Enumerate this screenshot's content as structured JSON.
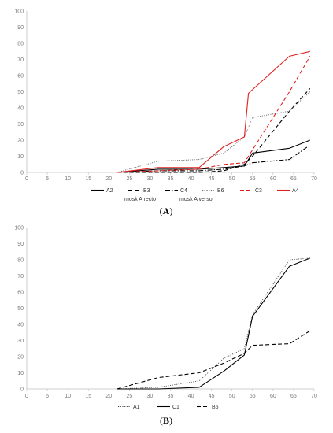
{
  "chart_data": [
    {
      "type": "line",
      "panel_label": "A",
      "xlim": [
        0,
        70
      ],
      "ylim": [
        0,
        100
      ],
      "x_ticks": [
        0,
        5,
        10,
        15,
        20,
        25,
        30,
        35,
        40,
        45,
        50,
        55,
        60,
        65,
        70
      ],
      "y_ticks": [
        0,
        10,
        20,
        30,
        40,
        50,
        60,
        70,
        80,
        90,
        100
      ],
      "grid": false,
      "legend": "bottom",
      "annotations": [
        "mosk A recto",
        "mosk A verso"
      ],
      "series": [
        {
          "name": "A2",
          "color": "#000000",
          "dash": "solid",
          "points": [
            [
              22,
              0
            ],
            [
              32,
              2
            ],
            [
              42,
              2
            ],
            [
              48,
              3
            ],
            [
              53,
              4
            ],
            [
              55,
              12
            ],
            [
              64,
              15
            ],
            [
              69,
              20
            ]
          ]
        },
        {
          "name": "B3",
          "color": "#000000",
          "dash": "dashed",
          "points": [
            [
              22,
              0
            ],
            [
              32,
              0
            ],
            [
              42,
              0
            ],
            [
              48,
              1
            ],
            [
              53,
              5
            ],
            [
              55,
              10
            ],
            [
              64,
              38
            ],
            [
              69,
              52
            ]
          ]
        },
        {
          "name": "C4",
          "color": "#000000",
          "dash": "dashdot",
          "points": [
            [
              22,
              0
            ],
            [
              32,
              1
            ],
            [
              42,
              1
            ],
            [
              48,
              2
            ],
            [
              53,
              4
            ],
            [
              55,
              6
            ],
            [
              64,
              8
            ],
            [
              69,
              17
            ]
          ]
        },
        {
          "name": "B6",
          "color": "#666666",
          "dash": "dotted",
          "points": [
            [
              22,
              0
            ],
            [
              32,
              7
            ],
            [
              42,
              8
            ],
            [
              48,
              12
            ],
            [
              53,
              22
            ],
            [
              55,
              34
            ],
            [
              64,
              38
            ],
            [
              69,
              50
            ]
          ]
        },
        {
          "name": "C3",
          "color": "#e02020",
          "dash": "dashed",
          "points": [
            [
              22,
              0
            ],
            [
              32,
              1
            ],
            [
              42,
              2
            ],
            [
              48,
              5
            ],
            [
              53,
              6
            ],
            [
              55,
              14
            ],
            [
              64,
              50
            ],
            [
              69,
              72
            ]
          ]
        },
        {
          "name": "A4",
          "color": "#e02020",
          "dash": "solid",
          "points": [
            [
              22,
              0
            ],
            [
              32,
              3
            ],
            [
              42,
              3
            ],
            [
              48,
              16
            ],
            [
              53,
              22
            ],
            [
              54,
              49
            ],
            [
              64,
              72
            ],
            [
              69,
              75
            ]
          ]
        }
      ]
    },
    {
      "type": "line",
      "panel_label": "B",
      "xlim": [
        0,
        70
      ],
      "ylim": [
        0,
        100
      ],
      "x_ticks": [
        0,
        5,
        10,
        15,
        20,
        25,
        30,
        35,
        40,
        45,
        50,
        55,
        60,
        65,
        70
      ],
      "y_ticks": [
        0,
        10,
        20,
        30,
        40,
        50,
        60,
        70,
        80,
        90,
        100
      ],
      "grid": false,
      "legend": "bottom",
      "series": [
        {
          "name": "A1",
          "color": "#555555",
          "dash": "dotted",
          "points": [
            [
              22,
              0
            ],
            [
              32,
              1
            ],
            [
              42,
              5
            ],
            [
              48,
              19
            ],
            [
              53,
              25
            ],
            [
              55,
              46
            ],
            [
              64,
              80
            ],
            [
              69,
              81
            ]
          ]
        },
        {
          "name": "C1",
          "color": "#000000",
          "dash": "solid",
          "points": [
            [
              22,
              0
            ],
            [
              32,
              0
            ],
            [
              42,
              1
            ],
            [
              48,
              11
            ],
            [
              53,
              21
            ],
            [
              55,
              45
            ],
            [
              64,
              76
            ],
            [
              69,
              81
            ]
          ]
        },
        {
          "name": "B5",
          "color": "#000000",
          "dash": "dashed",
          "points": [
            [
              22,
              0
            ],
            [
              32,
              7
            ],
            [
              42,
              10
            ],
            [
              48,
              16
            ],
            [
              53,
              22
            ],
            [
              55,
              27
            ],
            [
              64,
              28
            ],
            [
              69,
              36
            ]
          ]
        }
      ]
    }
  ]
}
